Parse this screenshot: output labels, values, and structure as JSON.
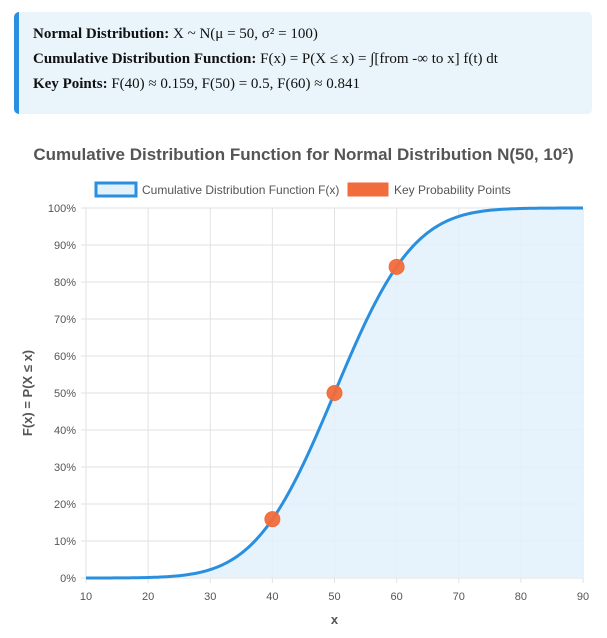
{
  "info": {
    "line1_label": "Normal Distribution:",
    "line1_value": " X ~ N(μ = 50, σ² = 100)",
    "line2_label": "Cumulative Distribution Function:",
    "line2_value": " F(x) = P(X ≤ x) = ∫[from -∞ to x] f(t) dt",
    "line3_label": "Key Points:",
    "line3_value": " F(40) ≈ 0.159, F(50) = 0.5, F(60) ≈ 0.841"
  },
  "colors": {
    "curve": "#2a8fde",
    "fill": "#e3f1fb",
    "points": "#f26b3a",
    "grid": "#e2e2e2",
    "info_border": "#2a8fde",
    "info_bg": "#eaf4fb"
  },
  "chart_data": {
    "type": "line",
    "title": "Cumulative Distribution Function for Normal Distribution N(50, 10²)",
    "xlabel": "x",
    "ylabel": "F(x) = P(X ≤ x)",
    "xlim": [
      10,
      90
    ],
    "ylim": [
      0,
      1
    ],
    "x_ticks": [
      10,
      20,
      30,
      40,
      50,
      60,
      70,
      80,
      90
    ],
    "y_ticks": [
      0,
      0.1,
      0.2,
      0.3,
      0.4,
      0.5,
      0.6,
      0.7,
      0.8,
      0.9,
      1.0
    ],
    "y_tick_labels": [
      "0%",
      "10%",
      "20%",
      "30%",
      "40%",
      "50%",
      "60%",
      "70%",
      "80%",
      "90%",
      "100%"
    ],
    "grid": true,
    "legend_position": "top",
    "series": [
      {
        "name": "Cumulative Distribution Function F(x)",
        "kind": "area-line",
        "mean": 50,
        "sd": 10,
        "x": [
          10,
          15,
          20,
          25,
          30,
          35,
          40,
          45,
          50,
          55,
          60,
          65,
          70,
          75,
          80,
          85,
          90
        ],
        "values": [
          0.0,
          0.0002,
          0.0013,
          0.0062,
          0.0228,
          0.0668,
          0.1587,
          0.3085,
          0.5,
          0.6915,
          0.8413,
          0.9332,
          0.9772,
          0.9938,
          0.9987,
          0.9998,
          1.0
        ]
      },
      {
        "name": "Key Probability Points",
        "kind": "scatter",
        "x": [
          40,
          50,
          60
        ],
        "values": [
          0.159,
          0.5,
          0.841
        ]
      }
    ]
  }
}
